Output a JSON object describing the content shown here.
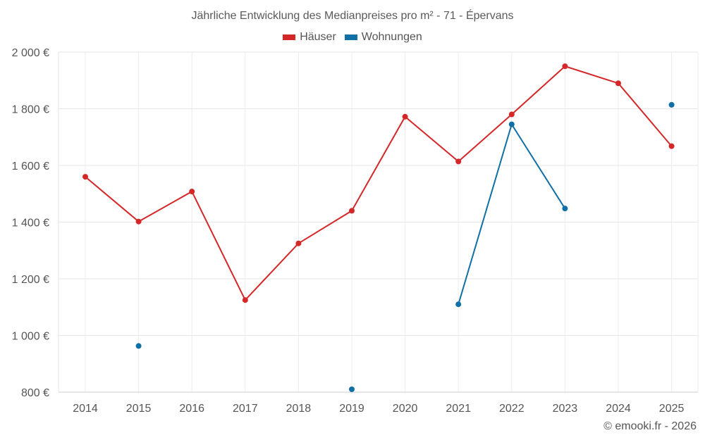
{
  "chart_data": {
    "type": "line",
    "title": "Jährliche Entwicklung des Medianpreises pro m² - 71 - Épervans",
    "categories": [
      "2014",
      "2015",
      "2016",
      "2017",
      "2018",
      "2019",
      "2020",
      "2021",
      "2022",
      "2023",
      "2024",
      "2025"
    ],
    "y_tick_labels": [
      "800 €",
      "1 000 €",
      "1 200 €",
      "1 400 €",
      "1 600 €",
      "1 800 €",
      "2 000 €"
    ],
    "y_ticks": [
      800,
      1000,
      1200,
      1400,
      1600,
      1800,
      2000
    ],
    "ylim": [
      800,
      2000
    ],
    "grid": true,
    "legend_position": "top-center",
    "series": [
      {
        "name": "Häuser",
        "color": "#d62728",
        "values": [
          1560,
          1402,
          1508,
          1125,
          1325,
          1440,
          1772,
          1614,
          1780,
          1950,
          1890,
          1668
        ]
      },
      {
        "name": "Wohnungen",
        "color": "#0f6fa6",
        "values": [
          null,
          963,
          null,
          null,
          null,
          810,
          null,
          1110,
          1745,
          1448,
          null,
          1814
        ]
      }
    ]
  },
  "credit": "© emooki.fr - 2026"
}
